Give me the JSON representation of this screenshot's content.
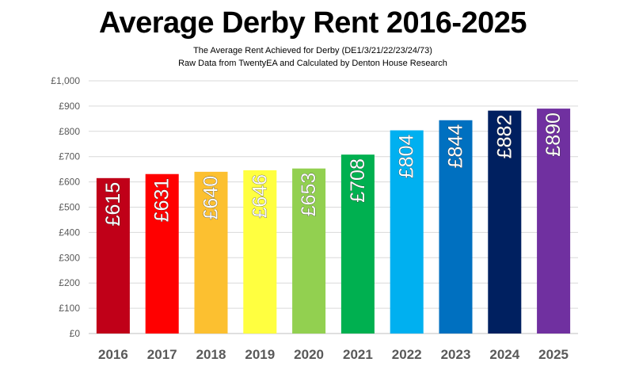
{
  "chart_data": {
    "type": "bar",
    "title": "Average Derby Rent 2016-2025",
    "subtitle_lines": [
      "The Average Rent Achieved for Derby (DE1/3/21/22/23/24/73)",
      "Raw Data from TwentyEA and Calculated by Denton House Research"
    ],
    "categories": [
      "2016",
      "2017",
      "2018",
      "2019",
      "2020",
      "2021",
      "2022",
      "2023",
      "2024",
      "2025"
    ],
    "values": [
      615,
      631,
      640,
      646,
      653,
      708,
      804,
      844,
      882,
      890
    ],
    "data_labels": [
      "£615",
      "£631",
      "£640",
      "£646",
      "£653",
      "£708",
      "£804",
      "£844",
      "£882",
      "£890"
    ],
    "bar_colors": [
      "#c00018",
      "#ff0000",
      "#fcc030",
      "#ffff40",
      "#92d050",
      "#00b050",
      "#00b0f0",
      "#0070c0",
      "#002060",
      "#7030a0"
    ],
    "y_ticks": [
      "£0",
      "£100",
      "£200",
      "£300",
      "£400",
      "£500",
      "£600",
      "£700",
      "£800",
      "£900",
      "£1,000"
    ],
    "ylim": [
      0,
      1000
    ],
    "xlabel": "",
    "ylabel": "",
    "grid": true,
    "legend": "none"
  }
}
